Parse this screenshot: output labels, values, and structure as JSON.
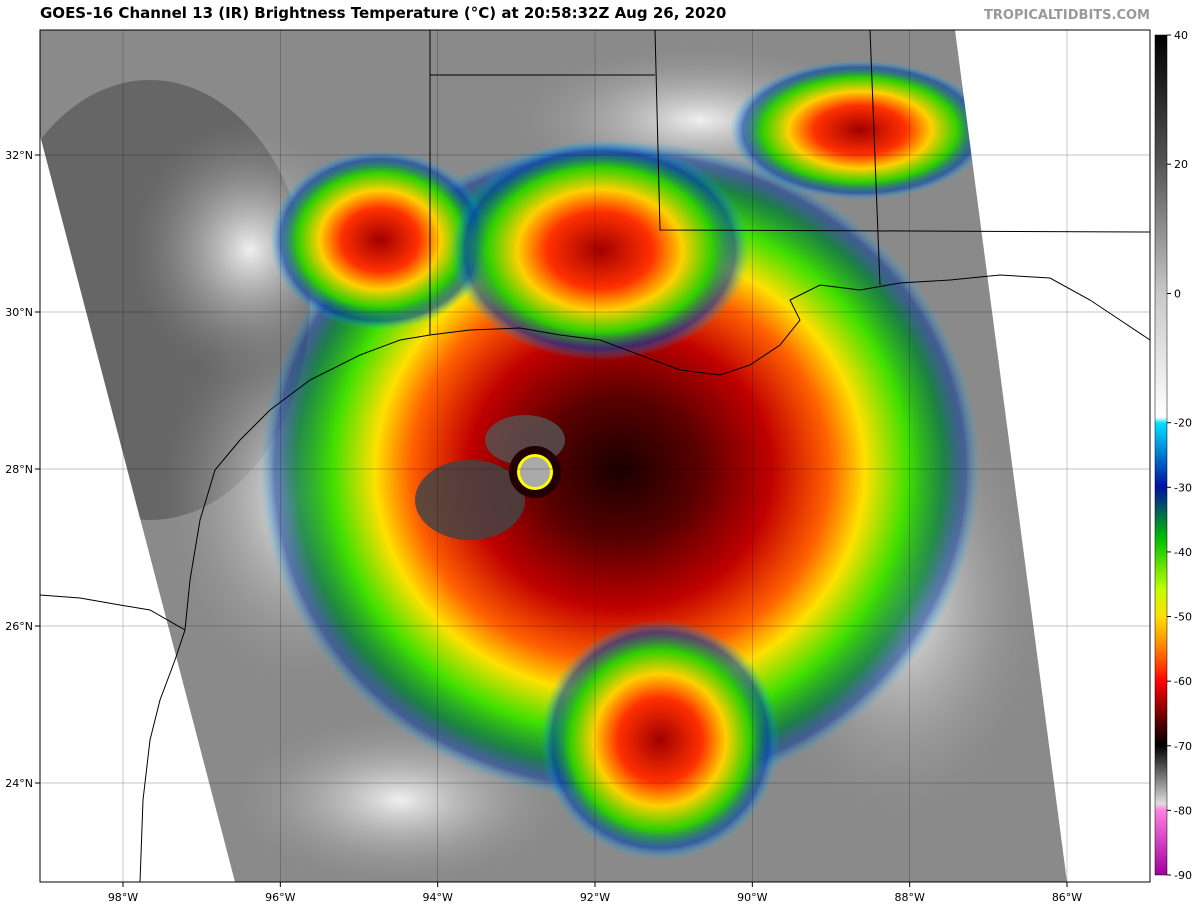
{
  "header": {
    "title": "GOES-16 Channel 13 (IR) Brightness Temperature (°C) at 20:58:32Z Aug 26, 2020",
    "watermark": "TROPICALTIDBITS.COM"
  },
  "map": {
    "lon_ticks": [
      {
        "value": -98,
        "label": "98°W"
      },
      {
        "value": -96,
        "label": "96°W"
      },
      {
        "value": -94,
        "label": "94°W"
      },
      {
        "value": -92,
        "label": "92°W"
      },
      {
        "value": -90,
        "label": "90°W"
      },
      {
        "value": -88,
        "label": "88°W"
      },
      {
        "value": -86,
        "label": "86°W"
      }
    ],
    "lat_ticks": [
      {
        "value": 24,
        "label": "24°N"
      },
      {
        "value": 26,
        "label": "26°N"
      },
      {
        "value": 28,
        "label": "28°N"
      },
      {
        "value": 30,
        "label": "30°N"
      },
      {
        "value": 32,
        "label": "32°N"
      }
    ]
  },
  "colorbar": {
    "ticks": [
      40,
      20,
      0,
      -20,
      -30,
      -40,
      -50,
      -60,
      -70,
      -80,
      -90
    ]
  }
}
